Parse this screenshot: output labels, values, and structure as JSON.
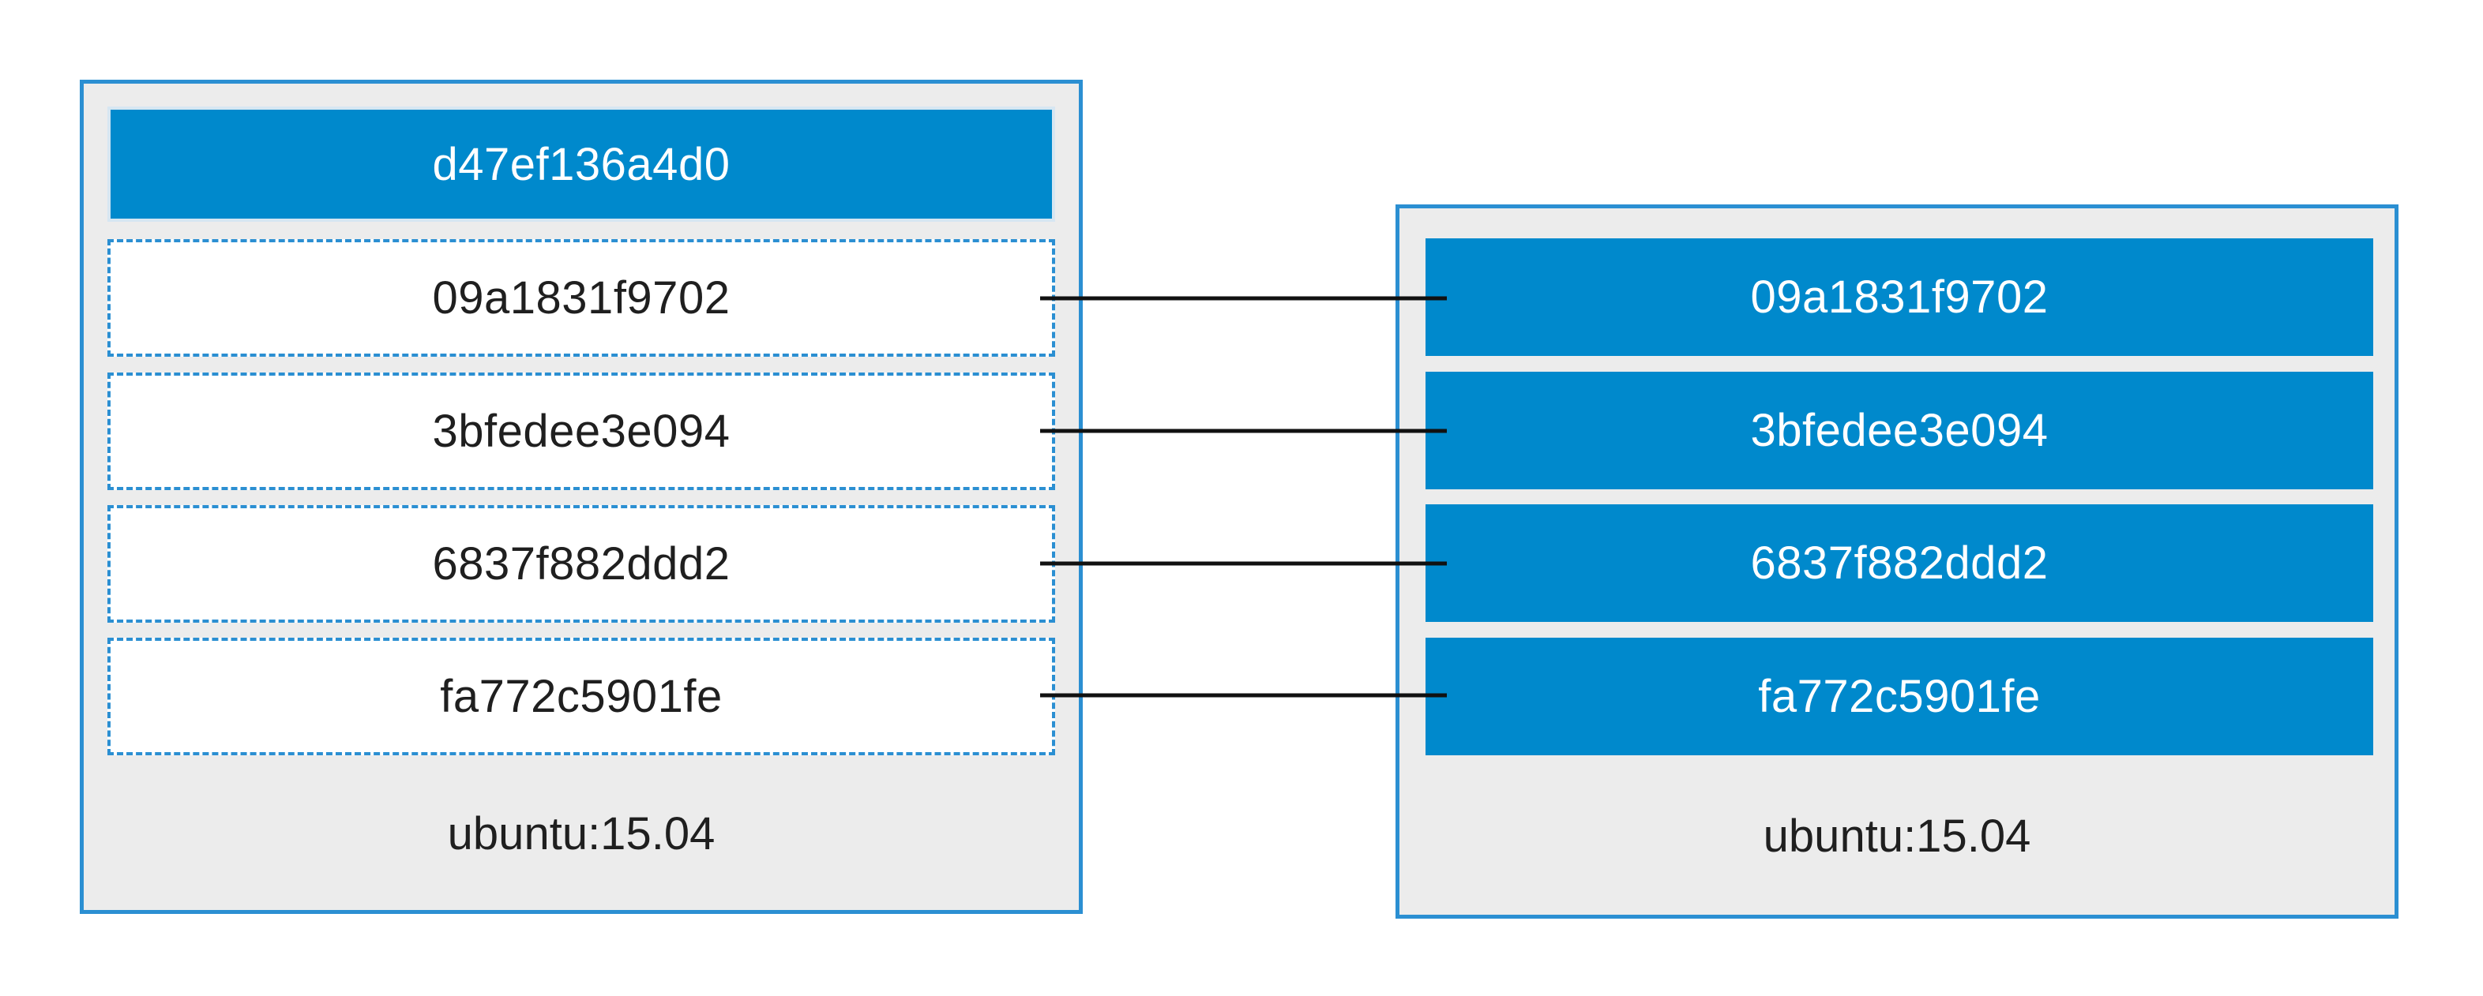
{
  "left_stack": {
    "top_layer": "d47ef136a4d0",
    "layers": [
      "09a1831f9702",
      "3bfedee3e094",
      "6837f882ddd2",
      "fa772c5901fe"
    ],
    "base_image": "ubuntu:15.04"
  },
  "right_stack": {
    "layers": [
      "09a1831f9702",
      "3bfedee3e094",
      "6837f882ddd2",
      "fa772c5901fe"
    ],
    "base_image": "ubuntu:15.04"
  },
  "colors": {
    "layer_fill": "#0089cc",
    "border": "#2b8fd2",
    "stack_background": "#ececec",
    "connector": "#111111"
  }
}
